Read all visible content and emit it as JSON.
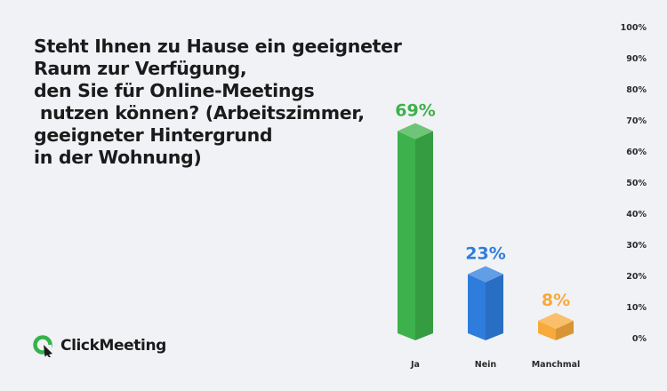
{
  "title_lines": [
    "Steht Ihnen zu Hause ein geeigneter",
    "Raum zur Verfügung,",
    "den Sie für Online-Meetings",
    " nutzen können? (Arbeitszimmer,",
    "geeigneter Hintergrund",
    "in der Wohnung)"
  ],
  "brand": {
    "name": "ClickMeeting",
    "icon": "clickmeeting-logo-icon",
    "colors": {
      "green": "#35b34a",
      "dark": "#1b1b1b"
    }
  },
  "chart_data": {
    "type": "bar",
    "categories": [
      "Ja",
      "Nein",
      "Manchmal"
    ],
    "values": [
      69,
      23,
      8
    ],
    "value_labels": [
      "69%",
      "23%",
      "8%"
    ],
    "colors": [
      "#3db14b",
      "#2e7ddc",
      "#f7a93a"
    ],
    "ylim": [
      0,
      100
    ],
    "yticks": [
      "0%",
      "10%",
      "20%",
      "30%",
      "40%",
      "50%",
      "60%",
      "70%",
      "80%",
      "90%",
      "100%"
    ],
    "axis_position": "right",
    "grid": false,
    "style": "3d-prism"
  }
}
